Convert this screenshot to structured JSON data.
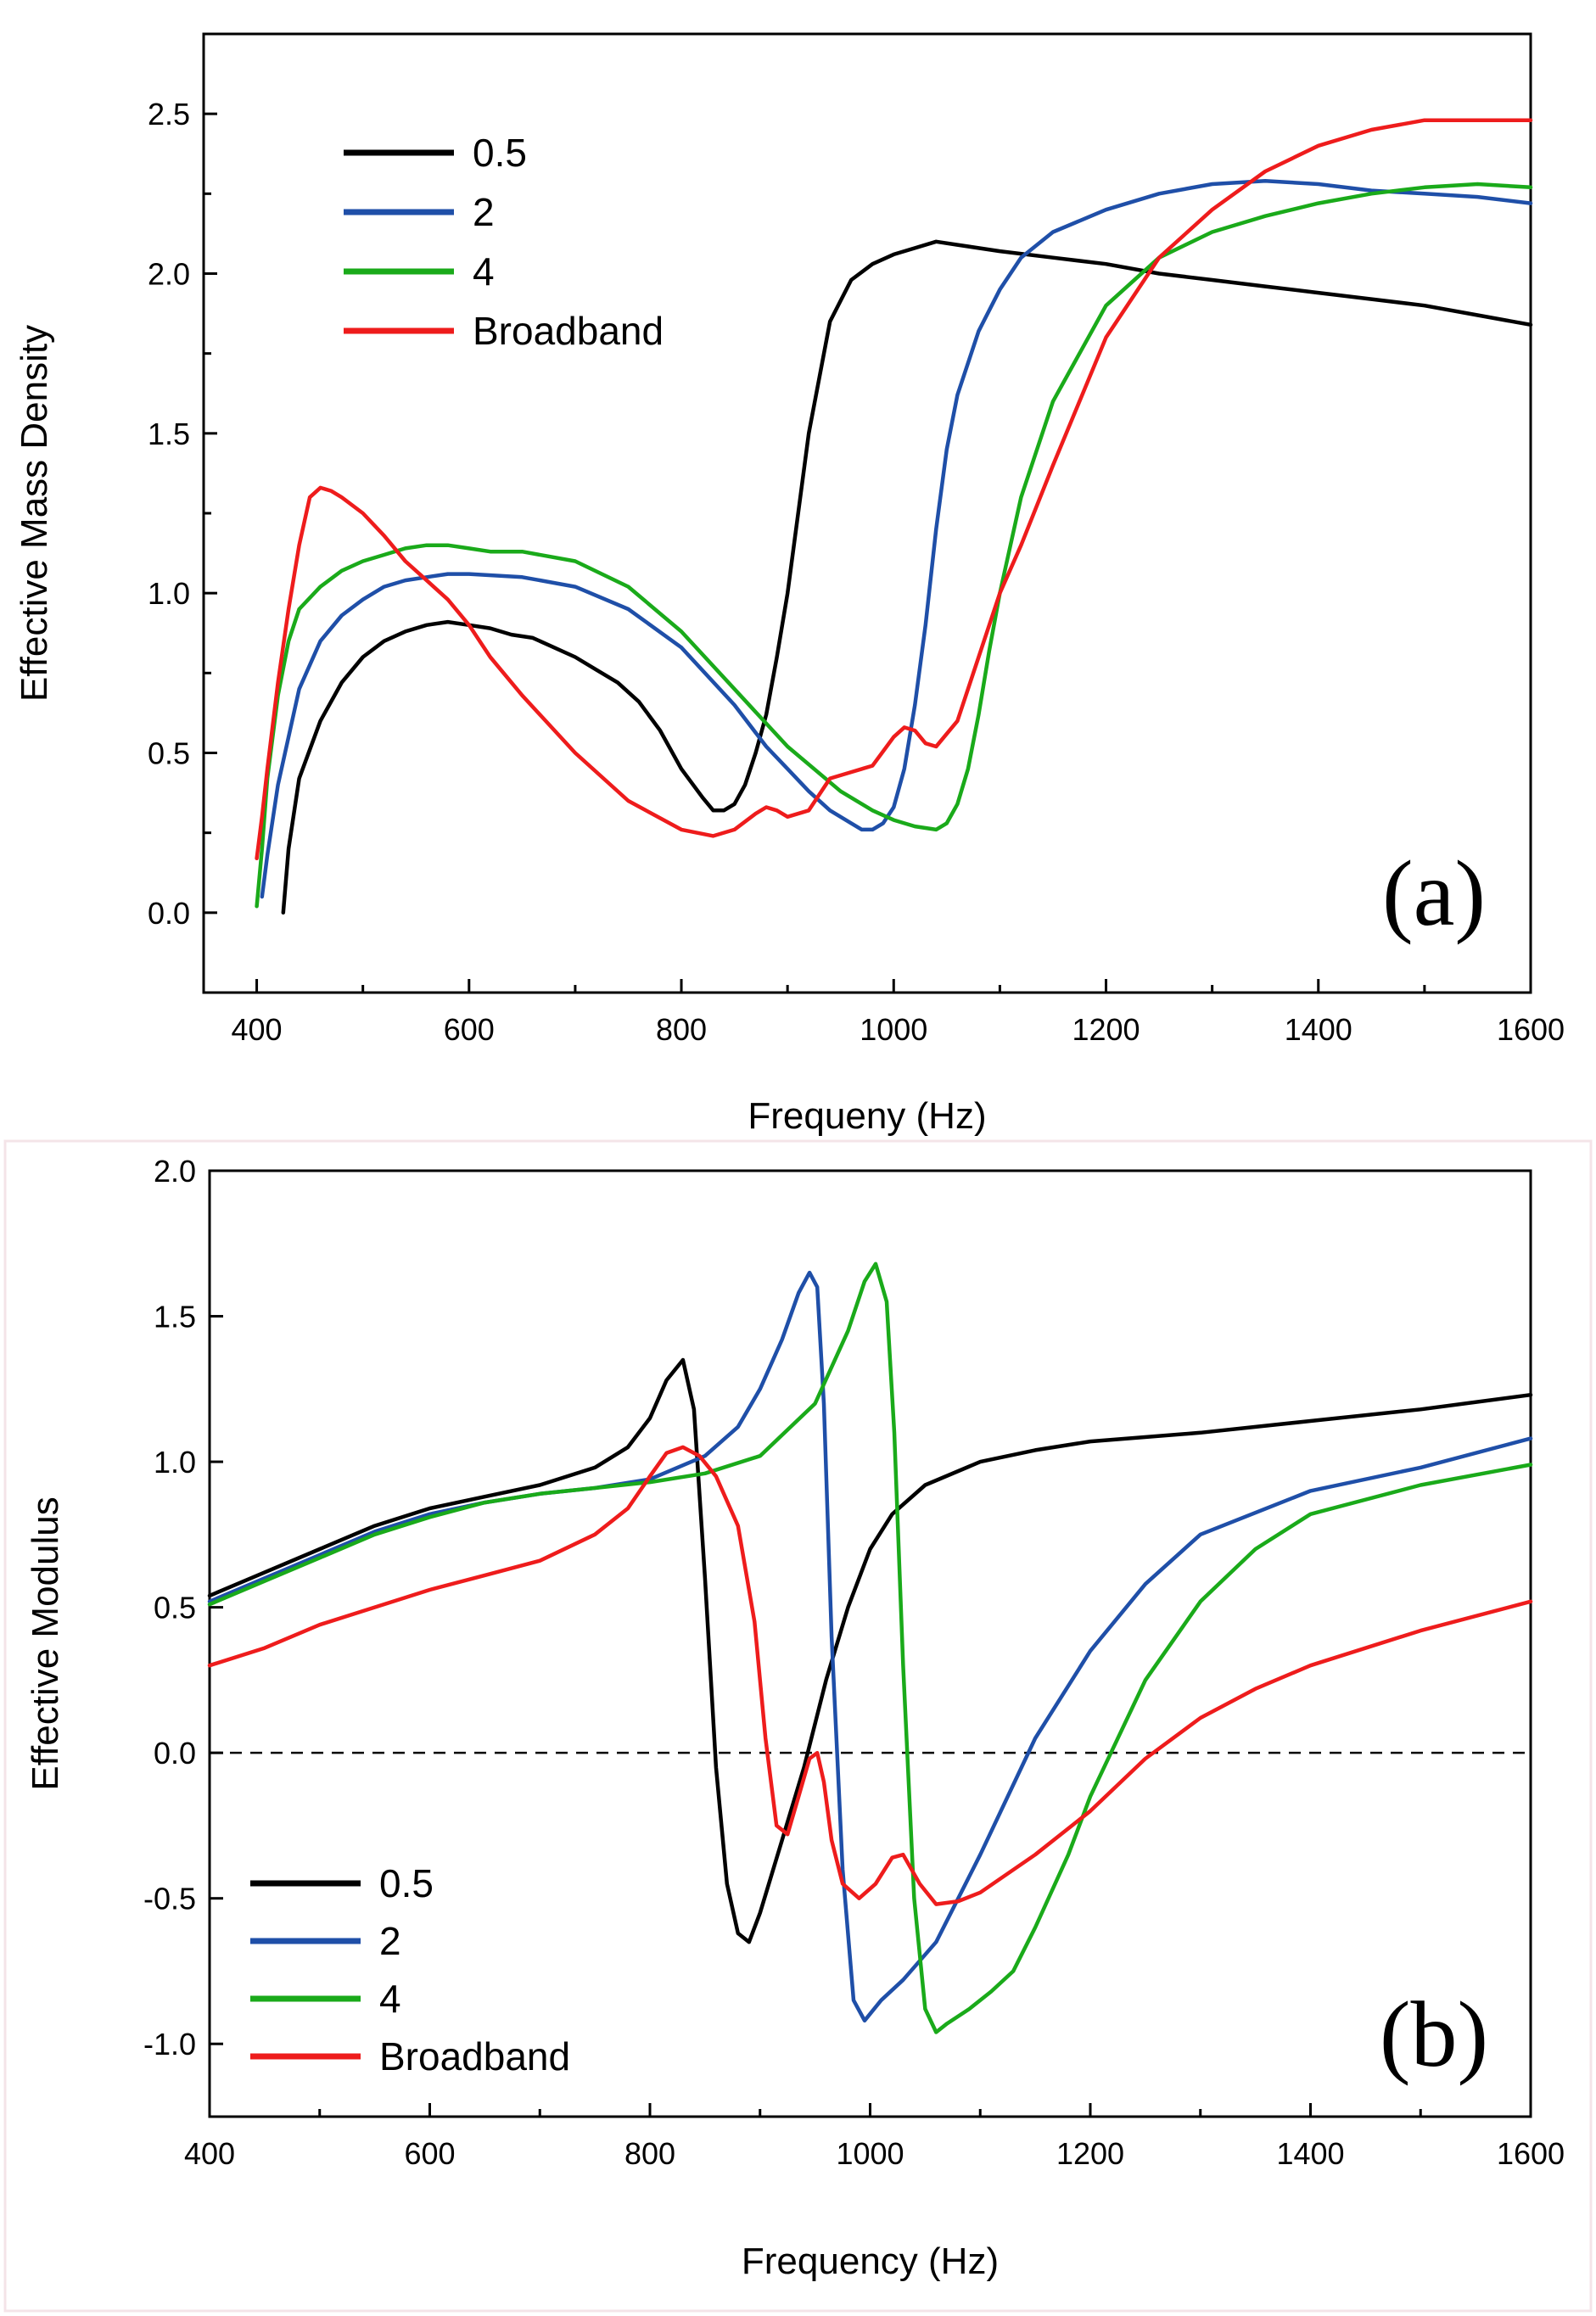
{
  "chart_data": [
    {
      "type": "line",
      "panel_label": "(a)",
      "xlabel": "Frequeny   (Hz)",
      "ylabel": "Effective Mass Density",
      "xlim": [
        350,
        1600
      ],
      "ylim": [
        -0.25,
        2.75
      ],
      "xticks": [
        400,
        600,
        800,
        1000,
        1200,
        1400,
        1600
      ],
      "yticks": [
        0.0,
        0.5,
        1.0,
        1.5,
        2.0,
        2.5
      ],
      "legend_position": "top-left",
      "grid": false,
      "series": [
        {
          "name": "0.5",
          "color": "#000000",
          "x": [
            425,
            430,
            440,
            460,
            480,
            500,
            520,
            540,
            560,
            580,
            600,
            620,
            640,
            660,
            680,
            700,
            720,
            740,
            760,
            780,
            800,
            820,
            830,
            840,
            850,
            860,
            870,
            880,
            890,
            900,
            910,
            920,
            940,
            960,
            980,
            1000,
            1020,
            1040,
            1060,
            1100,
            1150,
            1200,
            1250,
            1300,
            1350,
            1400,
            1450,
            1500,
            1550,
            1600
          ],
          "y": [
            0.0,
            0.2,
            0.42,
            0.6,
            0.72,
            0.8,
            0.85,
            0.88,
            0.9,
            0.91,
            0.9,
            0.89,
            0.87,
            0.86,
            0.83,
            0.8,
            0.76,
            0.72,
            0.66,
            0.57,
            0.45,
            0.36,
            0.32,
            0.32,
            0.34,
            0.4,
            0.5,
            0.62,
            0.8,
            1.0,
            1.25,
            1.5,
            1.85,
            1.98,
            2.03,
            2.06,
            2.08,
            2.1,
            2.09,
            2.07,
            2.05,
            2.03,
            2.0,
            1.98,
            1.96,
            1.94,
            1.92,
            1.9,
            1.87,
            1.84
          ]
        },
        {
          "name": "2",
          "color": "#1f4fa8",
          "x": [
            405,
            410,
            420,
            440,
            460,
            480,
            500,
            520,
            540,
            560,
            580,
            600,
            650,
            700,
            750,
            800,
            850,
            880,
            900,
            920,
            940,
            960,
            970,
            980,
            990,
            1000,
            1010,
            1020,
            1030,
            1040,
            1050,
            1060,
            1080,
            1100,
            1120,
            1150,
            1200,
            1250,
            1300,
            1350,
            1400,
            1450,
            1500,
            1550,
            1600
          ],
          "y": [
            0.05,
            0.18,
            0.4,
            0.7,
            0.85,
            0.93,
            0.98,
            1.02,
            1.04,
            1.05,
            1.06,
            1.06,
            1.05,
            1.02,
            0.95,
            0.83,
            0.65,
            0.52,
            0.45,
            0.38,
            0.32,
            0.28,
            0.26,
            0.26,
            0.28,
            0.33,
            0.45,
            0.65,
            0.9,
            1.2,
            1.45,
            1.62,
            1.82,
            1.95,
            2.05,
            2.13,
            2.2,
            2.25,
            2.28,
            2.29,
            2.28,
            2.26,
            2.25,
            2.24,
            2.22
          ]
        },
        {
          "name": "4",
          "color": "#1aaa1a",
          "x": [
            400,
            405,
            410,
            420,
            430,
            440,
            460,
            480,
            500,
            520,
            540,
            560,
            580,
            600,
            620,
            650,
            700,
            750,
            800,
            850,
            900,
            950,
            980,
            1000,
            1020,
            1040,
            1050,
            1060,
            1070,
            1080,
            1090,
            1100,
            1120,
            1150,
            1200,
            1250,
            1300,
            1350,
            1400,
            1450,
            1500,
            1550,
            1600
          ],
          "y": [
            0.02,
            0.2,
            0.42,
            0.68,
            0.85,
            0.95,
            1.02,
            1.07,
            1.1,
            1.12,
            1.14,
            1.15,
            1.15,
            1.14,
            1.13,
            1.13,
            1.1,
            1.02,
            0.88,
            0.7,
            0.52,
            0.38,
            0.32,
            0.29,
            0.27,
            0.26,
            0.28,
            0.34,
            0.45,
            0.62,
            0.82,
            1.0,
            1.3,
            1.6,
            1.9,
            2.05,
            2.13,
            2.18,
            2.22,
            2.25,
            2.27,
            2.28,
            2.27
          ]
        },
        {
          "name": "Broadband",
          "color": "#ee1c1c",
          "x": [
            400,
            405,
            410,
            420,
            430,
            440,
            450,
            460,
            470,
            480,
            500,
            520,
            540,
            560,
            580,
            600,
            620,
            650,
            700,
            750,
            800,
            830,
            850,
            870,
            880,
            890,
            900,
            920,
            940,
            960,
            980,
            1000,
            1010,
            1020,
            1030,
            1040,
            1060,
            1080,
            1100,
            1120,
            1150,
            1200,
            1250,
            1300,
            1350,
            1400,
            1450,
            1500,
            1550,
            1600
          ],
          "y": [
            0.17,
            0.3,
            0.45,
            0.72,
            0.95,
            1.15,
            1.3,
            1.33,
            1.32,
            1.3,
            1.25,
            1.18,
            1.1,
            1.04,
            0.98,
            0.9,
            0.8,
            0.68,
            0.5,
            0.35,
            0.26,
            0.24,
            0.26,
            0.31,
            0.33,
            0.32,
            0.3,
            0.32,
            0.42,
            0.44,
            0.46,
            0.55,
            0.58,
            0.57,
            0.53,
            0.52,
            0.6,
            0.8,
            1.0,
            1.15,
            1.4,
            1.8,
            2.05,
            2.2,
            2.32,
            2.4,
            2.45,
            2.48,
            2.48,
            2.48
          ]
        }
      ]
    },
    {
      "type": "line",
      "panel_label": "(b)",
      "xlabel": "Frequency  (Hz)",
      "ylabel": "Effective Modulus",
      "xlim": [
        400,
        1600
      ],
      "ylim": [
        -1.25,
        2.0
      ],
      "xticks": [
        400,
        600,
        800,
        1000,
        1200,
        1400,
        1600
      ],
      "yticks": [
        -1.0,
        -0.5,
        0.0,
        0.5,
        1.0,
        1.5,
        2.0
      ],
      "reference_line_y": 0.0,
      "legend_position": "bottom-left",
      "grid": false,
      "series": [
        {
          "name": "0.5",
          "color": "#000000",
          "x": [
            400,
            450,
            500,
            550,
            600,
            650,
            700,
            750,
            780,
            800,
            815,
            830,
            840,
            850,
            860,
            870,
            880,
            890,
            900,
            920,
            940,
            960,
            980,
            1000,
            1020,
            1050,
            1100,
            1150,
            1200,
            1300,
            1400,
            1500,
            1600
          ],
          "y": [
            0.54,
            0.62,
            0.7,
            0.78,
            0.84,
            0.88,
            0.92,
            0.98,
            1.05,
            1.15,
            1.28,
            1.35,
            1.18,
            0.6,
            -0.05,
            -0.45,
            -0.62,
            -0.65,
            -0.55,
            -0.3,
            -0.05,
            0.25,
            0.5,
            0.7,
            0.82,
            0.92,
            1.0,
            1.04,
            1.07,
            1.1,
            1.14,
            1.18,
            1.23
          ]
        },
        {
          "name": "2",
          "color": "#1f4fa8",
          "x": [
            400,
            450,
            500,
            550,
            600,
            650,
            700,
            750,
            800,
            850,
            880,
            900,
            920,
            935,
            945,
            952,
            958,
            965,
            975,
            985,
            995,
            1010,
            1030,
            1060,
            1100,
            1150,
            1200,
            1250,
            1300,
            1400,
            1500,
            1600
          ],
          "y": [
            0.52,
            0.6,
            0.68,
            0.76,
            0.82,
            0.86,
            0.89,
            0.91,
            0.94,
            1.02,
            1.12,
            1.25,
            1.42,
            1.58,
            1.65,
            1.6,
            1.2,
            0.4,
            -0.4,
            -0.85,
            -0.92,
            -0.85,
            -0.78,
            -0.65,
            -0.35,
            0.05,
            0.35,
            0.58,
            0.75,
            0.9,
            0.98,
            1.08
          ]
        },
        {
          "name": "4",
          "color": "#1aaa1a",
          "x": [
            400,
            450,
            500,
            550,
            600,
            650,
            700,
            750,
            800,
            850,
            900,
            950,
            980,
            995,
            1005,
            1015,
            1022,
            1030,
            1040,
            1050,
            1060,
            1070,
            1090,
            1110,
            1130,
            1150,
            1180,
            1200,
            1250,
            1300,
            1350,
            1400,
            1500,
            1600
          ],
          "y": [
            0.51,
            0.59,
            0.67,
            0.75,
            0.81,
            0.86,
            0.89,
            0.91,
            0.93,
            0.96,
            1.02,
            1.2,
            1.45,
            1.62,
            1.68,
            1.55,
            1.1,
            0.3,
            -0.5,
            -0.88,
            -0.96,
            -0.93,
            -0.88,
            -0.82,
            -0.75,
            -0.6,
            -0.35,
            -0.15,
            0.25,
            0.52,
            0.7,
            0.82,
            0.92,
            0.99
          ]
        },
        {
          "name": "Broadband",
          "color": "#ee1c1c",
          "x": [
            400,
            450,
            500,
            550,
            600,
            650,
            700,
            750,
            780,
            800,
            815,
            830,
            845,
            860,
            880,
            895,
            905,
            915,
            925,
            935,
            945,
            952,
            958,
            965,
            975,
            990,
            1005,
            1020,
            1030,
            1045,
            1060,
            1080,
            1100,
            1150,
            1200,
            1250,
            1300,
            1350,
            1400,
            1500,
            1600
          ],
          "y": [
            0.3,
            0.36,
            0.44,
            0.5,
            0.56,
            0.61,
            0.66,
            0.75,
            0.84,
            0.95,
            1.03,
            1.05,
            1.02,
            0.95,
            0.78,
            0.45,
            0.05,
            -0.25,
            -0.28,
            -0.15,
            -0.02,
            0.0,
            -0.1,
            -0.3,
            -0.45,
            -0.5,
            -0.45,
            -0.36,
            -0.35,
            -0.45,
            -0.52,
            -0.51,
            -0.48,
            -0.35,
            -0.2,
            -0.02,
            0.12,
            0.22,
            0.3,
            0.42,
            0.52
          ]
        }
      ]
    }
  ]
}
